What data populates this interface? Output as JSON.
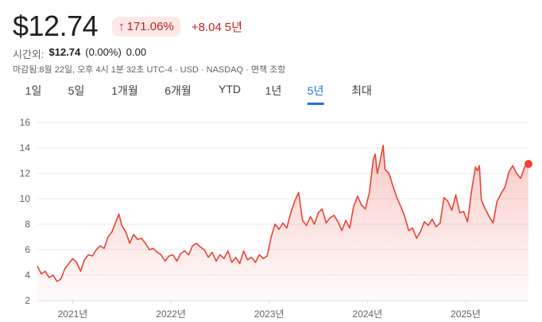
{
  "quote": {
    "price": "$12.74",
    "pct_change": "171.06%",
    "abs_change": "+8.04",
    "period_label": "5년",
    "up_color": "#c5221f"
  },
  "after_hours": {
    "label": "시간외:",
    "price": "$12.74",
    "pct": "(0.00%)",
    "change": "0.00"
  },
  "meta": "마감됨:8월 22일, 오후 4시 1분 32초 UTC-4 · USD · NASDAQ · 면책 조항",
  "tabs": [
    {
      "label": "1일",
      "active": false
    },
    {
      "label": "5일",
      "active": false
    },
    {
      "label": "1개월",
      "active": false
    },
    {
      "label": "6개월",
      "active": false
    },
    {
      "label": "YTD",
      "active": false
    },
    {
      "label": "1년",
      "active": false
    },
    {
      "label": "5년",
      "active": true
    },
    {
      "label": "최대",
      "active": false
    }
  ],
  "chart_data": {
    "type": "area",
    "series_color": "#ea4335",
    "ylim": [
      2,
      16
    ],
    "yticks": [
      2,
      4,
      6,
      8,
      10,
      12,
      14,
      16
    ],
    "xlim": [
      2020.64,
      2025.64
    ],
    "xticks": [
      {
        "pos": 2021.0,
        "label": "2021년"
      },
      {
        "pos": 2022.0,
        "label": "2022년"
      },
      {
        "pos": 2023.0,
        "label": "2023년"
      },
      {
        "pos": 2024.0,
        "label": "2024년"
      },
      {
        "pos": 2025.0,
        "label": "2025년"
      }
    ],
    "points": [
      [
        2020.64,
        4.7
      ],
      [
        2020.68,
        4.1
      ],
      [
        2020.72,
        4.3
      ],
      [
        2020.76,
        3.8
      ],
      [
        2020.8,
        4.0
      ],
      [
        2020.84,
        3.5
      ],
      [
        2020.88,
        3.7
      ],
      [
        2020.92,
        4.5
      ],
      [
        2020.96,
        4.9
      ],
      [
        2021.0,
        5.3
      ],
      [
        2021.04,
        5.0
      ],
      [
        2021.08,
        4.3
      ],
      [
        2021.12,
        5.2
      ],
      [
        2021.16,
        5.6
      ],
      [
        2021.2,
        5.5
      ],
      [
        2021.24,
        6.0
      ],
      [
        2021.28,
        6.3
      ],
      [
        2021.32,
        6.1
      ],
      [
        2021.36,
        7.0
      ],
      [
        2021.4,
        7.4
      ],
      [
        2021.44,
        8.2
      ],
      [
        2021.47,
        8.8
      ],
      [
        2021.5,
        7.9
      ],
      [
        2021.54,
        7.4
      ],
      [
        2021.58,
        6.5
      ],
      [
        2021.62,
        7.2
      ],
      [
        2021.66,
        6.8
      ],
      [
        2021.7,
        6.9
      ],
      [
        2021.74,
        6.5
      ],
      [
        2021.78,
        6.0
      ],
      [
        2021.82,
        6.1
      ],
      [
        2021.86,
        5.8
      ],
      [
        2021.9,
        5.6
      ],
      [
        2021.94,
        5.1
      ],
      [
        2021.98,
        5.5
      ],
      [
        2022.02,
        5.6
      ],
      [
        2022.06,
        5.1
      ],
      [
        2022.1,
        5.7
      ],
      [
        2022.14,
        5.9
      ],
      [
        2022.18,
        5.6
      ],
      [
        2022.22,
        6.3
      ],
      [
        2022.26,
        6.5
      ],
      [
        2022.3,
        6.2
      ],
      [
        2022.34,
        6.0
      ],
      [
        2022.38,
        5.4
      ],
      [
        2022.42,
        5.8
      ],
      [
        2022.46,
        5.1
      ],
      [
        2022.5,
        5.6
      ],
      [
        2022.54,
        5.3
      ],
      [
        2022.58,
        5.9
      ],
      [
        2022.62,
        5.0
      ],
      [
        2022.66,
        5.4
      ],
      [
        2022.7,
        4.9
      ],
      [
        2022.74,
        5.9
      ],
      [
        2022.78,
        5.2
      ],
      [
        2022.82,
        5.4
      ],
      [
        2022.86,
        5.0
      ],
      [
        2022.9,
        5.6
      ],
      [
        2022.94,
        5.3
      ],
      [
        2022.98,
        5.5
      ],
      [
        2023.02,
        7.0
      ],
      [
        2023.06,
        8.0
      ],
      [
        2023.1,
        7.6
      ],
      [
        2023.14,
        8.1
      ],
      [
        2023.18,
        7.7
      ],
      [
        2023.22,
        8.9
      ],
      [
        2023.26,
        9.8
      ],
      [
        2023.3,
        10.5
      ],
      [
        2023.34,
        8.3
      ],
      [
        2023.38,
        7.9
      ],
      [
        2023.42,
        8.6
      ],
      [
        2023.46,
        8.0
      ],
      [
        2023.5,
        8.9
      ],
      [
        2023.54,
        9.2
      ],
      [
        2023.58,
        8.1
      ],
      [
        2023.62,
        8.5
      ],
      [
        2023.66,
        8.7
      ],
      [
        2023.7,
        8.2
      ],
      [
        2023.74,
        7.5
      ],
      [
        2023.78,
        8.3
      ],
      [
        2023.82,
        7.7
      ],
      [
        2023.86,
        9.4
      ],
      [
        2023.9,
        10.2
      ],
      [
        2023.94,
        9.5
      ],
      [
        2023.98,
        9.2
      ],
      [
        2024.02,
        10.5
      ],
      [
        2024.06,
        13.1
      ],
      [
        2024.08,
        13.5
      ],
      [
        2024.1,
        12.0
      ],
      [
        2024.12,
        12.6
      ],
      [
        2024.14,
        13.4
      ],
      [
        2024.16,
        14.2
      ],
      [
        2024.18,
        12.3
      ],
      [
        2024.22,
        12.0
      ],
      [
        2024.26,
        11.0
      ],
      [
        2024.3,
        10.1
      ],
      [
        2024.34,
        9.4
      ],
      [
        2024.38,
        8.6
      ],
      [
        2024.42,
        7.5
      ],
      [
        2024.46,
        7.7
      ],
      [
        2024.5,
        6.9
      ],
      [
        2024.54,
        7.4
      ],
      [
        2024.58,
        8.2
      ],
      [
        2024.62,
        7.9
      ],
      [
        2024.66,
        8.4
      ],
      [
        2024.7,
        7.8
      ],
      [
        2024.74,
        8.1
      ],
      [
        2024.78,
        10.1
      ],
      [
        2024.82,
        9.8
      ],
      [
        2024.86,
        9.1
      ],
      [
        2024.9,
        10.3
      ],
      [
        2024.94,
        8.9
      ],
      [
        2024.98,
        9.0
      ],
      [
        2025.02,
        8.2
      ],
      [
        2025.06,
        10.6
      ],
      [
        2025.1,
        12.5
      ],
      [
        2025.12,
        12.2
      ],
      [
        2025.14,
        12.6
      ],
      [
        2025.16,
        9.9
      ],
      [
        2025.2,
        9.2
      ],
      [
        2025.24,
        8.6
      ],
      [
        2025.28,
        8.1
      ],
      [
        2025.32,
        9.8
      ],
      [
        2025.36,
        10.4
      ],
      [
        2025.4,
        10.9
      ],
      [
        2025.44,
        12.1
      ],
      [
        2025.48,
        12.6
      ],
      [
        2025.52,
        12.0
      ],
      [
        2025.56,
        11.6
      ],
      [
        2025.6,
        12.5
      ],
      [
        2025.64,
        12.74
      ]
    ]
  }
}
